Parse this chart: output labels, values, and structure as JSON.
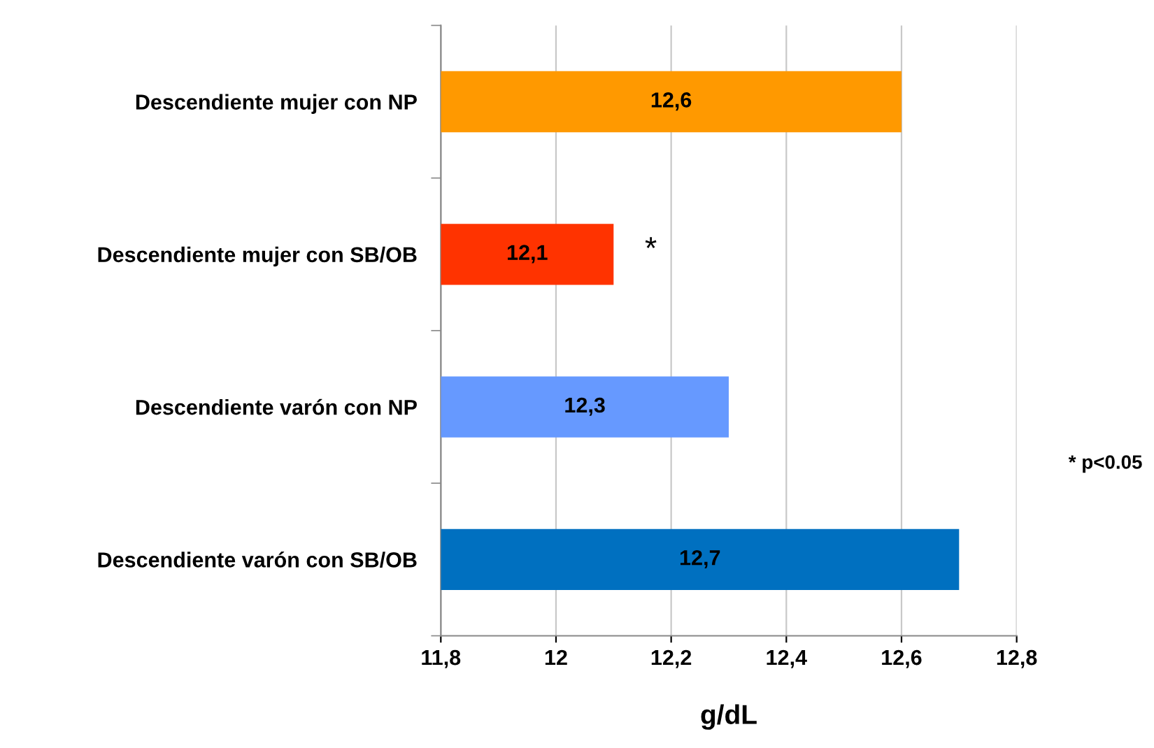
{
  "chart_data": {
    "type": "bar",
    "orientation": "horizontal",
    "categories": [
      "Descendiente mujer con NP",
      "Descendiente mujer con SB/OB",
      "Descendiente varón con NP",
      "Descendiente varón con SB/OB"
    ],
    "values": [
      12.6,
      12.1,
      12.3,
      12.7
    ],
    "colors": [
      "#ff9900",
      "#ff3300",
      "#6699ff",
      "#0070c0"
    ],
    "value_labels": [
      "12,6",
      "12,1",
      "12,3",
      "12,7"
    ],
    "xlim": [
      11.8,
      12.8
    ],
    "xticks": [
      {
        "value": 11.8,
        "label": "11,8"
      },
      12,
      {
        "value": 12.2,
        "label": "12,2"
      },
      {
        "value": 12.4,
        "label": "12,4"
      },
      {
        "value": 12.6,
        "label": "12,6"
      },
      {
        "value": 12.8,
        "label": "12,8"
      }
    ],
    "xlabel": "g/dL",
    "grid": "x",
    "annotations": [
      "*",
      "* p<0.05"
    ]
  }
}
